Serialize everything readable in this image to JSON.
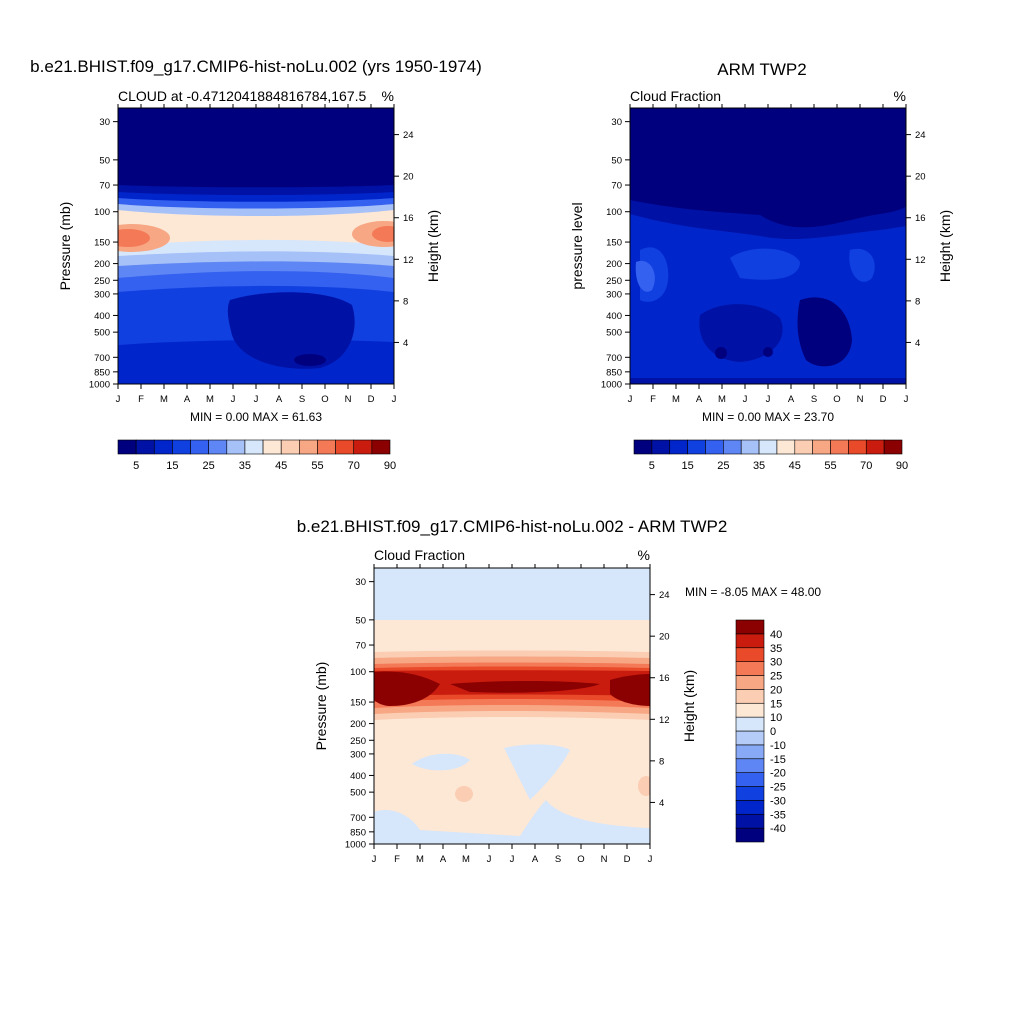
{
  "palettes": {
    "abs": [
      "#00007f",
      "#0011a5",
      "#0026cb",
      "#1140e0",
      "#3461f0",
      "#5e86f4",
      "#a6c0f8",
      "#d6e6fb",
      "#fde8d6",
      "#fbcdb3",
      "#f7a784",
      "#f47a57",
      "#e84a2a",
      "#c91c0e",
      "#8b0000"
    ],
    "diff": [
      "#00007f",
      "#0011a5",
      "#0026cb",
      "#1140e0",
      "#3461f0",
      "#5e86f4",
      "#87a9f6",
      "#b5cbf8",
      "#d6e6fb",
      "#fde8d6",
      "#fbcdb3",
      "#f7a784",
      "#f47a57",
      "#e84a2a",
      "#c91c0e",
      "#8b0000"
    ]
  },
  "chart_data": [
    {
      "type": "heatmap",
      "title": "b.e21.BHIST.f09_g17.CMIP6-hist-noLu.002 (yrs 1950-1974)",
      "subtitle_left": "CLOUD at -0.4712041884816784,167.5",
      "subtitle_right": "%",
      "ylabel": "Pressure (mb)",
      "ylabel_right": "Height (km)",
      "x_tick_labels": [
        "J",
        "F",
        "M",
        "A",
        "M",
        "J",
        "J",
        "A",
        "S",
        "O",
        "N",
        "D",
        "J"
      ],
      "y_ticks": [
        30,
        50,
        70,
        100,
        150,
        200,
        250,
        300,
        400,
        500,
        700,
        850,
        1000
      ],
      "height_ticks": [
        4,
        8,
        12,
        16,
        20,
        24
      ],
      "ylim": [
        1000,
        25
      ],
      "stats": "MIN =   0.00 MAX =  61.63",
      "palette": "abs",
      "colorbar_labels": [
        "5",
        "15",
        "25",
        "35",
        "45",
        "55",
        "70",
        "90"
      ]
    },
    {
      "type": "heatmap",
      "title": "ARM TWP2",
      "subtitle_left": "Cloud Fraction",
      "subtitle_right": "%",
      "ylabel": "pressure level",
      "ylabel_right": "Height (km)",
      "x_tick_labels": [
        "J",
        "F",
        "M",
        "A",
        "M",
        "J",
        "J",
        "A",
        "S",
        "O",
        "N",
        "D",
        "J"
      ],
      "y_ticks": [
        30,
        50,
        70,
        100,
        150,
        200,
        250,
        300,
        400,
        500,
        700,
        850,
        1000
      ],
      "height_ticks": [
        4,
        8,
        12,
        16,
        20,
        24
      ],
      "ylim": [
        1000,
        25
      ],
      "stats": "MIN =   0.00 MAX =  23.70",
      "palette": "abs",
      "colorbar_labels": [
        "5",
        "15",
        "25",
        "35",
        "45",
        "55",
        "70",
        "90"
      ]
    },
    {
      "type": "heatmap",
      "title": "b.e21.BHIST.f09_g17.CMIP6-hist-noLu.002 - ARM TWP2",
      "subtitle_left": "Cloud Fraction",
      "subtitle_right": "%",
      "ylabel": "Pressure (mb)",
      "ylabel_right": "Height (km)",
      "x_tick_labels": [
        "J",
        "F",
        "M",
        "A",
        "M",
        "J",
        "J",
        "A",
        "S",
        "O",
        "N",
        "D",
        "J"
      ],
      "y_ticks": [
        30,
        50,
        70,
        100,
        150,
        200,
        250,
        300,
        400,
        500,
        700,
        850,
        1000
      ],
      "height_ticks": [
        4,
        8,
        12,
        16,
        20,
        24
      ],
      "ylim": [
        1000,
        25
      ],
      "stats": "MIN =  -8.05 MAX =  48.00",
      "palette": "diff",
      "colorbar_labels": [
        "40",
        "35",
        "30",
        "25",
        "20",
        "15",
        "10",
        "0",
        "-10",
        "-15",
        "-20",
        "-25",
        "-30",
        "-35",
        "-40"
      ]
    }
  ]
}
